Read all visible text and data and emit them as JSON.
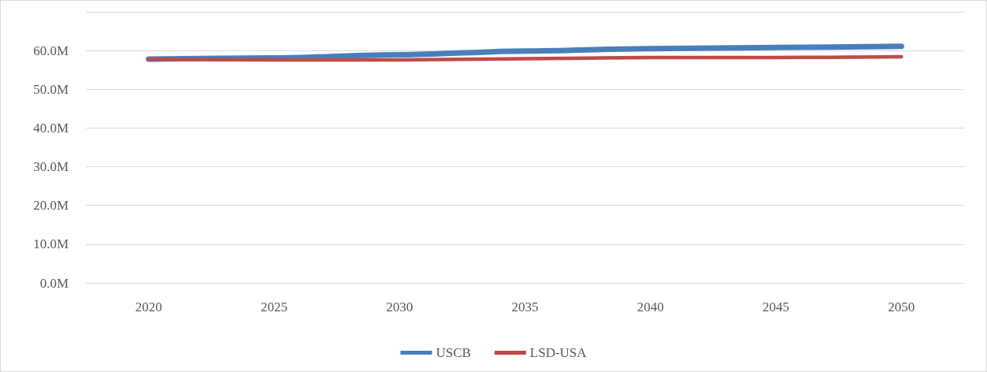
{
  "chart_data": {
    "type": "line",
    "categories": [
      "2020",
      "2025",
      "2030",
      "2035",
      "2040",
      "2045",
      "2050"
    ],
    "series": [
      {
        "name": "USCB",
        "color": "#4a7ebb",
        "values": [
          57.8,
          58.1,
          58.9,
          59.9,
          60.5,
          60.8,
          61.1
        ]
      },
      {
        "name": "LSD-USA",
        "color": "#be4b48",
        "values": [
          57.8,
          57.6,
          57.6,
          57.9,
          58.2,
          58.2,
          58.4
        ]
      }
    ],
    "ylim": [
      0,
      70
    ],
    "yticks": [
      {
        "value": 0,
        "label": "0.0M"
      },
      {
        "value": 10,
        "label": "10.0M"
      },
      {
        "value": 20,
        "label": "20.0M"
      },
      {
        "value": 30,
        "label": "30.0M"
      },
      {
        "value": 40,
        "label": "40.0M"
      },
      {
        "value": 50,
        "label": "50.0M"
      },
      {
        "value": 60,
        "label": "60.0M"
      },
      {
        "value": 70,
        "label": null
      }
    ],
    "grid": "y",
    "legend": "bottom",
    "marker": "none",
    "line_style": "solid"
  }
}
